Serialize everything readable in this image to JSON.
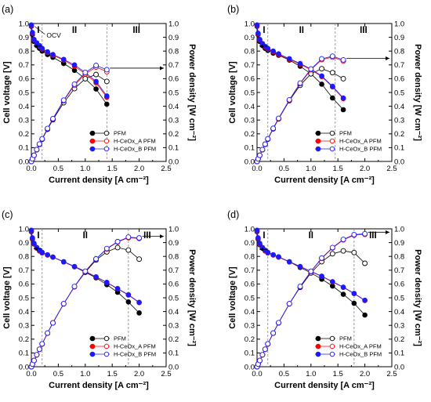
{
  "colors": {
    "PFM": "#000000",
    "H-CeOx_A PFM": "#ff0000",
    "H-CeOx_B PFM": "#1a1aff"
  },
  "chart_data": [
    {
      "type": "line",
      "label": "(a)",
      "xlabel": "Current density [A cm⁻²]",
      "ylabel_left": "Cell voltage [V]",
      "ylabel_right": "Power density [W cm⁻²]",
      "xlim": [
        0,
        2.5
      ],
      "ylim_left": [
        0,
        1.0
      ],
      "ylim_right": [
        0,
        1.0
      ],
      "xticks": [
        "0.0",
        "0.5",
        "1.0",
        "1.5",
        "2.0",
        "2.5"
      ],
      "yticks_left": [
        "0.0",
        "0.1",
        "0.2",
        "0.3",
        "0.4",
        "0.5",
        "0.6",
        "0.7",
        "0.8",
        "0.9",
        "1.0"
      ],
      "yticks_right": [
        "0.0",
        "0.1",
        "0.2",
        "0.3",
        "0.4",
        "0.5",
        "0.6",
        "0.7",
        "0.8",
        "0.9",
        "1.0"
      ],
      "regions": [
        "I",
        "II",
        "III"
      ],
      "region_bounds": [
        0.2,
        1.4
      ],
      "annotation": "OCV",
      "x": [
        0,
        0.02,
        0.05,
        0.1,
        0.15,
        0.2,
        0.3,
        0.4,
        0.6,
        0.8,
        1.0,
        1.2,
        1.4
      ],
      "series": [
        {
          "name": "PFM",
          "voltage": [
            0.98,
            0.92,
            0.87,
            0.84,
            0.82,
            0.8,
            0.775,
            0.755,
            0.71,
            0.66,
            0.6,
            0.525,
            0.415
          ],
          "power": [
            0,
            0.018,
            0.044,
            0.084,
            0.123,
            0.16,
            0.233,
            0.302,
            0.426,
            0.528,
            0.6,
            0.63,
            0.58
          ]
        },
        {
          "name": "H-CeOx_A PFM",
          "voltage": [
            0.985,
            0.93,
            0.88,
            0.855,
            0.835,
            0.815,
            0.79,
            0.77,
            0.735,
            0.69,
            0.635,
            0.57,
            0.465
          ],
          "power": [
            0,
            0.019,
            0.044,
            0.086,
            0.125,
            0.163,
            0.237,
            0.308,
            0.441,
            0.552,
            0.635,
            0.684,
            0.651
          ]
        },
        {
          "name": "H-CeOx_B PFM",
          "voltage": [
            0.99,
            0.935,
            0.885,
            0.86,
            0.84,
            0.82,
            0.795,
            0.775,
            0.74,
            0.7,
            0.645,
            0.58,
            0.475
          ],
          "power": [
            0,
            0.019,
            0.044,
            0.086,
            0.126,
            0.164,
            0.239,
            0.31,
            0.444,
            0.56,
            0.645,
            0.696,
            0.665
          ]
        }
      ]
    },
    {
      "type": "line",
      "label": "(b)",
      "xlabel": "Current density [A cm⁻²]",
      "ylabel_left": "Cell voltage [V]",
      "ylabel_right": "Power density [W cm⁻²]",
      "xlim": [
        0,
        2.5
      ],
      "ylim_left": [
        0,
        1.0
      ],
      "ylim_right": [
        0,
        1.0
      ],
      "xticks": [
        "0.0",
        "0.5",
        "1.0",
        "1.5",
        "2.0",
        "2.5"
      ],
      "yticks_left": [
        "0.0",
        "0.1",
        "0.2",
        "0.3",
        "0.4",
        "0.5",
        "0.6",
        "0.7",
        "0.8",
        "0.9",
        "1.0"
      ],
      "yticks_right": [
        "0.0",
        "0.1",
        "0.2",
        "0.3",
        "0.4",
        "0.5",
        "0.6",
        "0.7",
        "0.8",
        "0.9",
        "1.0"
      ],
      "regions": [
        "I",
        "II",
        "III"
      ],
      "region_bounds": [
        0.2,
        1.45
      ],
      "x": [
        0,
        0.02,
        0.05,
        0.1,
        0.15,
        0.2,
        0.3,
        0.4,
        0.6,
        0.8,
        1.0,
        1.2,
        1.4,
        1.6
      ],
      "series": [
        {
          "name": "PFM",
          "voltage": [
            0.98,
            0.92,
            0.87,
            0.84,
            0.82,
            0.805,
            0.785,
            0.77,
            0.735,
            0.69,
            0.635,
            0.56,
            0.46,
            0.375
          ],
          "power": [
            0,
            0.018,
            0.044,
            0.084,
            0.123,
            0.161,
            0.236,
            0.308,
            0.441,
            0.552,
            0.635,
            0.672,
            0.644,
            0.6
          ]
        },
        {
          "name": "H-CeOx_A PFM",
          "voltage": [
            0.985,
            0.925,
            0.88,
            0.85,
            0.83,
            0.815,
            0.795,
            0.775,
            0.74,
            0.705,
            0.665,
            0.615,
            0.54,
            0.455
          ],
          "power": [
            0,
            0.019,
            0.044,
            0.085,
            0.125,
            0.163,
            0.239,
            0.31,
            0.444,
            0.564,
            0.665,
            0.738,
            0.756,
            0.728
          ]
        },
        {
          "name": "H-CeOx_B PFM",
          "voltage": [
            0.99,
            0.93,
            0.885,
            0.855,
            0.835,
            0.82,
            0.8,
            0.78,
            0.745,
            0.71,
            0.67,
            0.62,
            0.545,
            0.46
          ],
          "power": [
            0,
            0.019,
            0.044,
            0.086,
            0.125,
            0.164,
            0.24,
            0.312,
            0.447,
            0.568,
            0.67,
            0.744,
            0.763,
            0.736
          ]
        }
      ]
    },
    {
      "type": "line",
      "label": "(c)",
      "xlabel": "Current density [A cm⁻²]",
      "ylabel_left": "Cell voltage [V]",
      "ylabel_right": "Power density [W cm⁻²]",
      "xlim": [
        0,
        2.5
      ],
      "ylim_left": [
        0,
        1.0
      ],
      "ylim_right": [
        0,
        1.0
      ],
      "xticks": [
        "0.0",
        "0.5",
        "1.0",
        "1.5",
        "2.0",
        "2.5"
      ],
      "yticks_left": [
        "0.0",
        "0.1",
        "0.2",
        "0.3",
        "0.4",
        "0.5",
        "0.6",
        "0.7",
        "0.8",
        "0.9",
        "1.0"
      ],
      "yticks_right": [
        "0.0",
        "0.1",
        "0.2",
        "0.3",
        "0.4",
        "0.5",
        "0.6",
        "0.7",
        "0.8",
        "0.9",
        "1.0"
      ],
      "regions": [
        "I",
        "II",
        "III"
      ],
      "region_bounds": [
        0.2,
        1.8
      ],
      "x": [
        0,
        0.02,
        0.05,
        0.1,
        0.15,
        0.2,
        0.3,
        0.4,
        0.6,
        0.8,
        1.0,
        1.2,
        1.4,
        1.6,
        1.8,
        2.0
      ],
      "series": [
        {
          "name": "PFM",
          "voltage": [
            0.98,
            0.925,
            0.89,
            0.86,
            0.84,
            0.825,
            0.81,
            0.795,
            0.76,
            0.725,
            0.685,
            0.645,
            0.595,
            0.54,
            0.47,
            0.39
          ],
          "power": [
            0,
            0.019,
            0.045,
            0.086,
            0.126,
            0.165,
            0.243,
            0.318,
            0.456,
            0.58,
            0.685,
            0.774,
            0.833,
            0.864,
            0.846,
            0.78
          ]
        },
        {
          "name": "H-CeOx_A PFM",
          "voltage": [
            0.985,
            0.93,
            0.89,
            0.86,
            0.84,
            0.825,
            0.81,
            0.795,
            0.76,
            0.725,
            0.69,
            0.65,
            0.61,
            0.565,
            0.52,
            0.465
          ],
          "power": [
            0,
            0.019,
            0.045,
            0.086,
            0.126,
            0.165,
            0.243,
            0.318,
            0.456,
            0.58,
            0.69,
            0.78,
            0.854,
            0.904,
            0.936,
            0.93
          ]
        },
        {
          "name": "H-CeOx_B PFM",
          "voltage": [
            0.99,
            0.935,
            0.895,
            0.865,
            0.845,
            0.83,
            0.812,
            0.795,
            0.762,
            0.727,
            0.692,
            0.652,
            0.612,
            0.567,
            0.522,
            0.467
          ],
          "power": [
            0,
            0.019,
            0.045,
            0.087,
            0.127,
            0.166,
            0.244,
            0.318,
            0.457,
            0.582,
            0.692,
            0.782,
            0.857,
            0.907,
            0.94,
            0.934
          ]
        }
      ]
    },
    {
      "type": "line",
      "label": "(d)",
      "xlabel": "Current density [A cm⁻²]",
      "ylabel_left": "Cell voltage [V]",
      "ylabel_right": "Power density [W cm⁻²]",
      "xlim": [
        0,
        2.5
      ],
      "ylim_left": [
        0,
        1.0
      ],
      "ylim_right": [
        0,
        1.0
      ],
      "xticks": [
        "0.0",
        "0.5",
        "1.0",
        "1.5",
        "2.0",
        "2.5"
      ],
      "yticks_left": [
        "0.0",
        "0.1",
        "0.2",
        "0.3",
        "0.4",
        "0.5",
        "0.6",
        "0.7",
        "0.8",
        "0.9",
        "1.0"
      ],
      "yticks_right": [
        "0.0",
        "0.1",
        "0.2",
        "0.3",
        "0.4",
        "0.5",
        "0.6",
        "0.7",
        "0.8",
        "0.9",
        "1.0"
      ],
      "regions": [
        "I",
        "II",
        "III"
      ],
      "region_bounds": [
        0.2,
        1.8
      ],
      "x": [
        0,
        0.02,
        0.05,
        0.1,
        0.15,
        0.2,
        0.3,
        0.4,
        0.6,
        0.8,
        1.0,
        1.2,
        1.4,
        1.6,
        1.8,
        2.0
      ],
      "series": [
        {
          "name": "PFM",
          "voltage": [
            0.98,
            0.925,
            0.885,
            0.86,
            0.84,
            0.825,
            0.81,
            0.795,
            0.76,
            0.72,
            0.68,
            0.635,
            0.585,
            0.525,
            0.46,
            0.375
          ],
          "power": [
            0,
            0.019,
            0.044,
            0.086,
            0.126,
            0.165,
            0.243,
            0.318,
            0.456,
            0.576,
            0.68,
            0.762,
            0.819,
            0.84,
            0.828,
            0.75
          ]
        },
        {
          "name": "H-CeOx_A PFM",
          "voltage": [
            0.985,
            0.93,
            0.89,
            0.86,
            0.84,
            0.825,
            0.81,
            0.795,
            0.76,
            0.725,
            0.69,
            0.655,
            0.615,
            0.575,
            0.53,
            0.48
          ],
          "power": [
            0,
            0.019,
            0.045,
            0.086,
            0.126,
            0.165,
            0.243,
            0.318,
            0.456,
            0.58,
            0.69,
            0.786,
            0.861,
            0.92,
            0.954,
            0.96
          ]
        },
        {
          "name": "H-CeOx_B PFM",
          "voltage": [
            0.99,
            0.935,
            0.895,
            0.865,
            0.845,
            0.83,
            0.812,
            0.797,
            0.762,
            0.727,
            0.692,
            0.657,
            0.617,
            0.577,
            0.532,
            0.482
          ],
          "power": [
            0,
            0.019,
            0.045,
            0.087,
            0.127,
            0.166,
            0.244,
            0.319,
            0.457,
            0.582,
            0.692,
            0.788,
            0.864,
            0.923,
            0.958,
            0.964
          ]
        }
      ]
    }
  ]
}
